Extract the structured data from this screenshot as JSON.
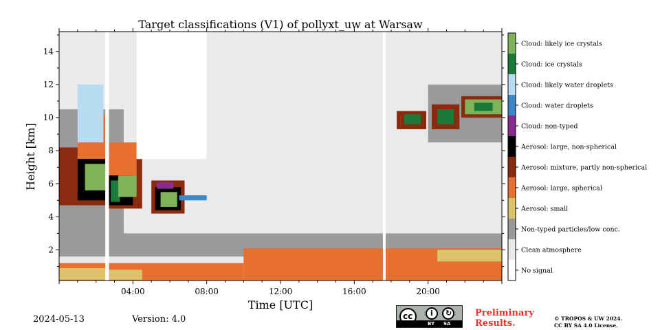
{
  "chart_data": {
    "type": "heatmap",
    "title": "Target classifications (V1) of pollyxt_uw at Warsaw",
    "xlabel": "Time [UTC]",
    "ylabel": "Height [km]",
    "xlim_hours": [
      0,
      24
    ],
    "ylim_km": [
      0.15,
      15.2
    ],
    "x_ticks": [
      {
        "value": 4,
        "label": "04:00"
      },
      {
        "value": 8,
        "label": "08:00"
      },
      {
        "value": 12,
        "label": "12:00"
      },
      {
        "value": 16,
        "label": "16:00"
      },
      {
        "value": 20,
        "label": "20:00"
      }
    ],
    "y_ticks": [
      {
        "value": 2,
        "label": "2"
      },
      {
        "value": 4,
        "label": "4"
      },
      {
        "value": 6,
        "label": "6"
      },
      {
        "value": 8,
        "label": "8"
      },
      {
        "value": 10,
        "label": "10"
      },
      {
        "value": 12,
        "label": "12"
      },
      {
        "value": 14,
        "label": "14"
      }
    ],
    "classes": [
      {
        "label": "No signal",
        "color": "#ffffff"
      },
      {
        "label": "Clean atmosphere",
        "color": "#eaeaea"
      },
      {
        "label": "Non-typed particles/low conc.",
        "color": "#9a9a9a"
      },
      {
        "label": "Aerosol: small",
        "color": "#ddc36c"
      },
      {
        "label": "Aerosol: large, spherical",
        "color": "#e8702f"
      },
      {
        "label": "Aerosol: mixture, partly non-spherical",
        "color": "#8a2a0f"
      },
      {
        "label": "Aerosol: large, non-spherical",
        "color": "#000000"
      },
      {
        "label": "Cloud: non-typed",
        "color": "#8b2a8f"
      },
      {
        "label": "Cloud: water droplets",
        "color": "#3b87c8"
      },
      {
        "label": "Cloud: likely water droplets",
        "color": "#b8dcf2"
      },
      {
        "label": "Cloud: ice crystals",
        "color": "#1a7a3a"
      },
      {
        "label": "Cloud: likely ice crystals",
        "color": "#7fb35a"
      }
    ],
    "regions": [
      {
        "class": 1,
        "t": [
          0,
          24
        ],
        "h": [
          0.15,
          15.2
        ]
      },
      {
        "class": 1,
        "t": [
          0,
          24
        ],
        "h": [
          2.0,
          15.0
        ]
      },
      {
        "class": 2,
        "t": [
          0,
          24
        ],
        "h": [
          1.6,
          3.0
        ]
      },
      {
        "class": 2,
        "t": [
          0,
          3.5
        ],
        "h": [
          3.0,
          10.5
        ]
      },
      {
        "class": 2,
        "t": [
          20,
          24
        ],
        "h": [
          8.5,
          12.0
        ]
      },
      {
        "class": 4,
        "t": [
          0,
          10
        ],
        "h": [
          0.15,
          1.2
        ]
      },
      {
        "class": 3,
        "t": [
          0,
          2.5
        ],
        "h": [
          0.2,
          0.9
        ]
      },
      {
        "class": 3,
        "t": [
          2.7,
          4.5
        ],
        "h": [
          0.2,
          0.8
        ]
      },
      {
        "class": 4,
        "t": [
          10,
          24
        ],
        "h": [
          0.15,
          2.1
        ]
      },
      {
        "class": 3,
        "t": [
          20.5,
          24
        ],
        "h": [
          1.3,
          2.0
        ]
      },
      {
        "class": 5,
        "t": [
          0,
          2.5
        ],
        "h": [
          4.7,
          8.2
        ]
      },
      {
        "class": 4,
        "t": [
          1.0,
          2.5
        ],
        "h": [
          5.5,
          10.2
        ]
      },
      {
        "class": 6,
        "t": [
          1.0,
          2.5
        ],
        "h": [
          5.0,
          7.5
        ]
      },
      {
        "class": 11,
        "t": [
          1.4,
          2.5
        ],
        "h": [
          5.6,
          7.2
        ]
      },
      {
        "class": 9,
        "t": [
          1.0,
          2.4
        ],
        "h": [
          8.5,
          12.0
        ]
      },
      {
        "class": 5,
        "t": [
          2.5,
          4.5
        ],
        "h": [
          4.5,
          7.5
        ]
      },
      {
        "class": 4,
        "t": [
          2.6,
          4.2
        ],
        "h": [
          6.5,
          8.5
        ]
      },
      {
        "class": 6,
        "t": [
          2.6,
          4.0
        ],
        "h": [
          4.7,
          6.5
        ]
      },
      {
        "class": 10,
        "t": [
          2.8,
          3.3
        ],
        "h": [
          4.9,
          6.2
        ]
      },
      {
        "class": 11,
        "t": [
          3.2,
          4.2
        ],
        "h": [
          5.2,
          6.5
        ]
      },
      {
        "class": 5,
        "t": [
          5.0,
          6.8
        ],
        "h": [
          4.2,
          6.2
        ]
      },
      {
        "class": 6,
        "t": [
          5.2,
          6.6
        ],
        "h": [
          4.4,
          5.8
        ]
      },
      {
        "class": 11,
        "t": [
          5.5,
          6.4
        ],
        "h": [
          4.6,
          5.5
        ]
      },
      {
        "class": 7,
        "t": [
          5.3,
          6.2
        ],
        "h": [
          5.7,
          6.1
        ]
      },
      {
        "class": 8,
        "t": [
          6.5,
          8.0
        ],
        "h": [
          5.0,
          5.3
        ]
      },
      {
        "class": 5,
        "t": [
          18.3,
          19.9
        ],
        "h": [
          9.3,
          10.4
        ]
      },
      {
        "class": 10,
        "t": [
          18.7,
          19.6
        ],
        "h": [
          9.6,
          10.2
        ]
      },
      {
        "class": 5,
        "t": [
          20.2,
          21.7
        ],
        "h": [
          9.3,
          10.8
        ]
      },
      {
        "class": 10,
        "t": [
          20.5,
          21.4
        ],
        "h": [
          9.6,
          10.5
        ]
      },
      {
        "class": 5,
        "t": [
          21.8,
          24.0
        ],
        "h": [
          10.0,
          11.3
        ]
      },
      {
        "class": 11,
        "t": [
          22.0,
          24.0
        ],
        "h": [
          10.2,
          11.1
        ]
      },
      {
        "class": 10,
        "t": [
          22.5,
          23.5
        ],
        "h": [
          10.4,
          10.9
        ]
      },
      {
        "class": 0,
        "t": [
          2.5,
          2.7
        ],
        "h": [
          0.15,
          15.2
        ]
      },
      {
        "class": 0,
        "t": [
          17.55,
          17.7
        ],
        "h": [
          0.15,
          15.2
        ]
      },
      {
        "class": 0,
        "t": [
          4.2,
          8.0
        ],
        "h": [
          7.5,
          15.2
        ]
      }
    ]
  },
  "footer": {
    "date": "2024-05-13",
    "version": "Version: 4.0",
    "preliminary": [
      "Preliminary",
      "Results."
    ],
    "copyright": [
      "© TROPOS & UW 2024.",
      "CC BY SA 4.0 License."
    ],
    "license_badge": {
      "cc": "cc",
      "by": "BY",
      "sa": "SA"
    }
  }
}
